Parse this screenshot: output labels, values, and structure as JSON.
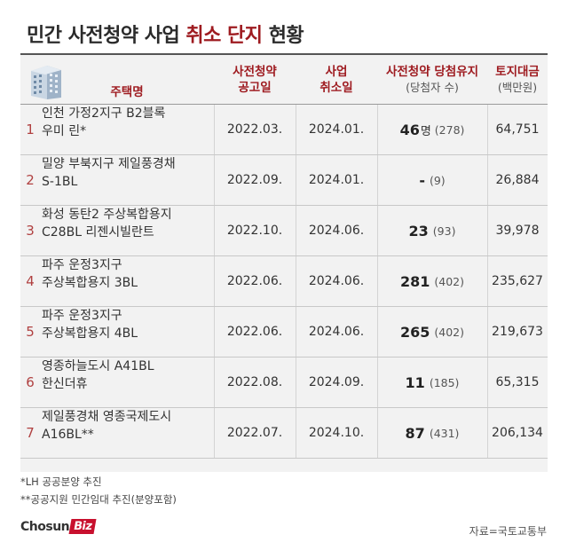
{
  "title": {
    "prefix": "민간 사전청약 사업 ",
    "accent": "취소 단지",
    "suffix": " 현황"
  },
  "colors": {
    "accent": "#9e1b20",
    "number": "#b04040",
    "frame": "#f2f2f2"
  },
  "header": {
    "icon": "apartment-building-icon",
    "name": "주택명",
    "pub_line1": "사전청약",
    "pub_line2": "공고일",
    "cancel_line1": "사업",
    "cancel_line2": "취소일",
    "winner_line1": "사전청약 당첨유지",
    "winner_line2": "(당첨자 수)",
    "land_line1": "토지대금",
    "land_line2": "(백만원)"
  },
  "rows": [
    {
      "num": "1",
      "name1": "인천 가정2지구 B2블록",
      "name2": "우미 린*",
      "pub": "2022.03.",
      "cancel": "2024.01.",
      "winner": "46",
      "unit": "명",
      "winners_total": "(278)",
      "land": "64,751"
    },
    {
      "num": "2",
      "name1": "밀양 부북지구 제일풍경채",
      "name2": "S-1BL",
      "pub": "2022.09.",
      "cancel": "2024.01.",
      "winner": "-",
      "unit": "",
      "winners_total": "(9)",
      "land": "26,884"
    },
    {
      "num": "3",
      "name1": "화성 동탄2 주상복합용지",
      "name2": "C28BL 리젠시빌란트",
      "pub": "2022.10.",
      "cancel": "2024.06.",
      "winner": "23",
      "unit": "",
      "winners_total": "(93)",
      "land": "39,978"
    },
    {
      "num": "4",
      "name1": "파주 운정3지구",
      "name2": "주상복합용지 3BL",
      "pub": "2022.06.",
      "cancel": "2024.06.",
      "winner": "281",
      "unit": "",
      "winners_total": "(402)",
      "land": "235,627"
    },
    {
      "num": "5",
      "name1": "파주 운정3지구",
      "name2": "주상복합용지 4BL",
      "pub": "2022.06.",
      "cancel": "2024.06.",
      "winner": "265",
      "unit": "",
      "winners_total": "(402)",
      "land": "219,673"
    },
    {
      "num": "6",
      "name1": "영종하늘도시 A41BL",
      "name2": "한신더휴",
      "pub": "2022.08.",
      "cancel": "2024.09.",
      "winner": "11",
      "unit": "",
      "winners_total": "(185)",
      "land": "65,315"
    },
    {
      "num": "7",
      "name1": "제일풍경채 영종국제도시",
      "name2": "A16BL**",
      "pub": "2022.07.",
      "cancel": "2024.10.",
      "winner": "87",
      "unit": "",
      "winners_total": "(431)",
      "land": "206,134"
    }
  ],
  "notes": [
    "*LH 공공분양 추진",
    "**공공지원 민간임대 추진(분양포함)"
  ],
  "logo": {
    "main": "Chosun",
    "badge": "Biz"
  },
  "source": "자료=국토교통부"
}
